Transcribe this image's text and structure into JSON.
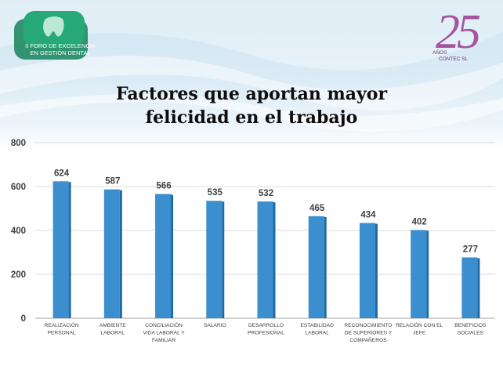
{
  "logo": {
    "mark_icon": "tooth-icon",
    "line1": "II FORO DE EXCELENCIA",
    "line2": "EN GESTIÓN DENTAL"
  },
  "anniversary": {
    "number": "25",
    "years": "AÑOS",
    "brand": "CONTEC SL"
  },
  "colors": {
    "bar": "#3b8fce",
    "bar_side": "#1f6aa3",
    "logo_green": "#1a9a6c",
    "accent_purple": "#9b3a8e"
  },
  "chart_data": {
    "type": "bar",
    "title_line1": "Factores que aportan mayor",
    "title_line2": "felicidad en el trabajo",
    "categories": [
      [
        "REALIZACIÓN",
        "PERSONAL"
      ],
      [
        "AMBIENTE",
        "LABORAL"
      ],
      [
        "CONCILIACIÓN",
        "VIDA LABORAL Y",
        "FAMILIAR"
      ],
      [
        "SALARIO"
      ],
      [
        "DESARROLLO",
        "PROFESIONAL"
      ],
      [
        "ESTABILIDAD",
        "LABORAL"
      ],
      [
        "RECONOCIMIENTO",
        "DE SUPERIORES Y",
        "COMPAÑEROS"
      ],
      [
        "RELACIÓN CON EL",
        "JEFE"
      ],
      [
        "BENEFICIOS",
        "SOCIALES"
      ]
    ],
    "values": [
      624,
      587,
      566,
      535,
      532,
      465,
      434,
      402,
      277
    ],
    "ylim": [
      0,
      800
    ],
    "yticks": [
      0,
      200,
      400,
      600,
      800
    ],
    "grid": true,
    "data_labels": true
  }
}
